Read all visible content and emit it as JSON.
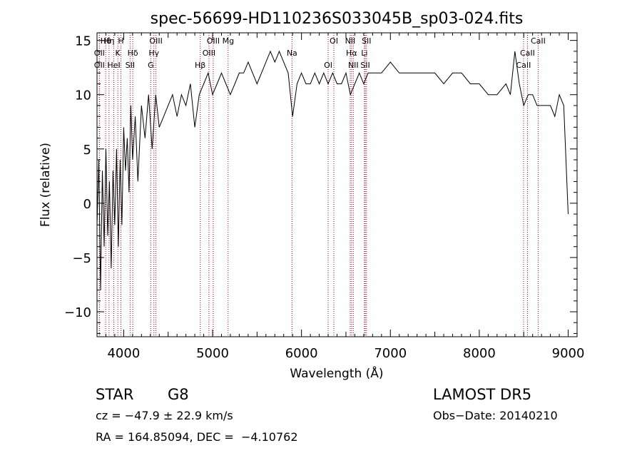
{
  "chart_data": {
    "type": "line",
    "title": "spec-56699-HD110236S033045B_sp03-024.fits",
    "xlabel": "Wavelength (Å)",
    "ylabel": "Flux (relative)",
    "xlim": [
      3700,
      9100
    ],
    "ylim": [
      -12.3,
      15.7
    ],
    "x_ticks": [
      4000,
      5000,
      6000,
      7000,
      8000,
      9000
    ],
    "y_ticks": [
      -10,
      -5,
      0,
      5,
      10,
      15
    ],
    "line_color": "#000000",
    "marker_color": "#a0001e",
    "series": [
      {
        "x": [
          3700,
          3720,
          3740,
          3760,
          3780,
          3800,
          3820,
          3840,
          3860,
          3880,
          3900,
          3920,
          3940,
          3960,
          3980,
          4000,
          4020,
          4040,
          4060,
          4080,
          4100,
          4130,
          4160,
          4200,
          4240,
          4280,
          4320,
          4360,
          4400,
          4450,
          4500,
          4550,
          4600,
          4650,
          4700,
          4750,
          4800,
          4850,
          4900,
          4950,
          5000,
          5050,
          5100,
          5150,
          5200,
          5250,
          5300,
          5350,
          5400,
          5450,
          5500,
          5550,
          5600,
          5650,
          5700,
          5750,
          5800,
          5850,
          5900,
          5950,
          6000,
          6050,
          6100,
          6150,
          6200,
          6250,
          6300,
          6350,
          6400,
          6450,
          6500,
          6550,
          6600,
          6650,
          6700,
          6750,
          6800,
          6900,
          7000,
          7100,
          7200,
          7300,
          7400,
          7500,
          7600,
          7700,
          7800,
          7900,
          8000,
          8100,
          8200,
          8300,
          8350,
          8400,
          8450,
          8500,
          8550,
          8600,
          8650,
          8700,
          8750,
          8800,
          8850,
          8900,
          8950,
          9000
        ],
        "y": [
          -2,
          4,
          -8,
          3,
          -4,
          5,
          -3,
          2,
          -6,
          3,
          -2,
          5,
          -4,
          4,
          -2,
          7,
          3,
          6,
          1,
          9,
          4,
          8,
          2,
          9,
          6,
          10,
          5,
          10,
          7,
          8,
          9,
          10,
          8,
          10,
          9,
          11,
          7,
          10,
          11,
          12,
          10,
          11,
          12,
          11,
          10,
          11,
          12,
          12,
          13,
          12,
          11,
          12,
          13,
          14,
          13,
          14,
          13,
          12,
          8,
          11,
          12,
          11,
          11,
          12,
          11,
          12,
          11,
          12,
          11,
          11,
          12,
          10,
          11,
          12,
          11,
          12,
          12,
          12,
          13,
          12,
          12,
          12,
          12,
          12,
          11,
          12,
          12,
          11,
          11,
          10,
          10,
          11,
          10,
          14,
          11,
          9,
          10,
          10,
          9,
          9,
          9,
          9,
          8,
          10,
          9,
          -1
        ]
      }
    ],
    "lines": [
      {
        "name": "Hθ",
        "wl": 3798
      },
      {
        "name": "OII",
        "wl": 3727
      },
      {
        "name": "OII",
        "wl": 3727
      },
      {
        "name": "Hη",
        "wl": 3835
      },
      {
        "name": "K",
        "wl": 3934
      },
      {
        "name": "HeI",
        "wl": 3889
      },
      {
        "name": "H",
        "wl": 3969
      },
      {
        "name": "Hδ",
        "wl": 4102
      },
      {
        "name": "SII",
        "wl": 4072
      },
      {
        "name": "OIII",
        "wl": 4363
      },
      {
        "name": "Hγ",
        "wl": 4340
      },
      {
        "name": "G",
        "wl": 4305
      },
      {
        "name": "OIII",
        "wl": 5007
      },
      {
        "name": "OIII",
        "wl": 4959
      },
      {
        "name": "Hβ",
        "wl": 4861
      },
      {
        "name": "Mg",
        "wl": 5175
      },
      {
        "name": "Na",
        "wl": 5893
      },
      {
        "name": "OI",
        "wl": 6300
      },
      {
        "name": "OI",
        "wl": 6364
      },
      {
        "name": "Hα",
        "wl": 6563
      },
      {
        "name": "SII",
        "wl": 6717
      },
      {
        "name": "NII",
        "wl": 6548
      },
      {
        "name": "Li",
        "wl": 6708
      },
      {
        "name": "NII",
        "wl": 6583
      },
      {
        "name": "SII",
        "wl": 6731
      },
      {
        "name": "CaII",
        "wl": 8542
      },
      {
        "name": "CaII",
        "wl": 8498
      },
      {
        "name": "CaII",
        "wl": 8662
      }
    ]
  },
  "info": {
    "class": "STAR",
    "subclass": "G8",
    "survey": "LAMOST DR5",
    "cz": "cz = −47.9 ± 22.9 km/s",
    "obs_date": "Obs−Date: 20140210",
    "coords": "RA = 164.85094, DEC =  −4.10762"
  }
}
